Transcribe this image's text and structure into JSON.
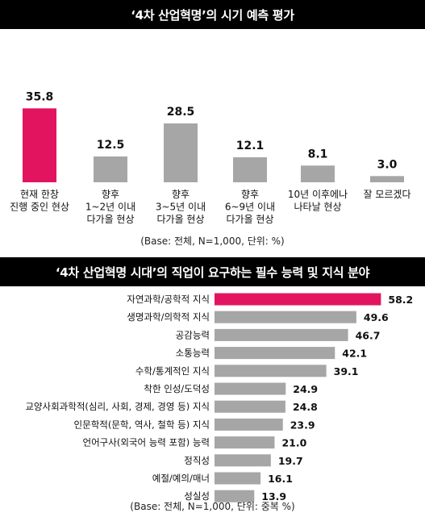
{
  "chart_data": [
    {
      "type": "bar",
      "title": "‘4차 산업혁명’의 시기 예측 평가",
      "categories": [
        [
          "현재 한창",
          "진행 중인 현상"
        ],
        [
          "향후",
          "1~2년 이내",
          "다가올 현상"
        ],
        [
          "향후",
          "3~5년 이내",
          "다가올 현상"
        ],
        [
          "향후",
          "6~9년 이내",
          "다가올 현상"
        ],
        [
          "10년 이후에나",
          "나타날 현상"
        ],
        [
          "잘 모르겠다"
        ]
      ],
      "values": [
        35.8,
        12.5,
        28.5,
        12.1,
        8.1,
        3.0
      ],
      "value_labels": [
        "35.8",
        "12.5",
        "28.5",
        "12.1",
        "8.1",
        "3.0"
      ],
      "highlight_index": 0,
      "note": "(Base: 전체, N=1,000, 단위: %)"
    },
    {
      "type": "bar",
      "orientation": "horizontal",
      "title": "‘4차 산업혁명 시대’의 직업이 요구하는 필수 능력 및 지식 분야",
      "categories": [
        "자연과학/공학적 지식",
        "생명과학/의학적 지식",
        "공감능력",
        "소통능력",
        "수학/통계적인 지식",
        "착한 인성/도덕성",
        "교양사회과학적(심리, 사회, 경제, 경영 등) 지식",
        "인문학적(문학, 역사, 철학 등) 지식",
        "언어구사(외국어 능력 포함) 능력",
        "정직성",
        "예절/예의/매너",
        "성실성"
      ],
      "values": [
        58.2,
        49.6,
        46.7,
        42.1,
        39.1,
        24.9,
        24.8,
        23.9,
        21.0,
        19.7,
        16.1,
        13.9
      ],
      "value_labels": [
        "58.2",
        "49.6",
        "46.7",
        "42.1",
        "39.1",
        "24.9",
        "24.8",
        "23.9",
        "21.0",
        "19.7",
        "16.1",
        "13.9"
      ],
      "highlight_index": 0,
      "note": "(Base: 전체, N=1,000, 단위: 중복 %)"
    }
  ],
  "colors": {
    "highlight": "#e3145f",
    "bar": "#a6a6a6",
    "banner": "#000000",
    "banner_text": "#ffffff"
  }
}
